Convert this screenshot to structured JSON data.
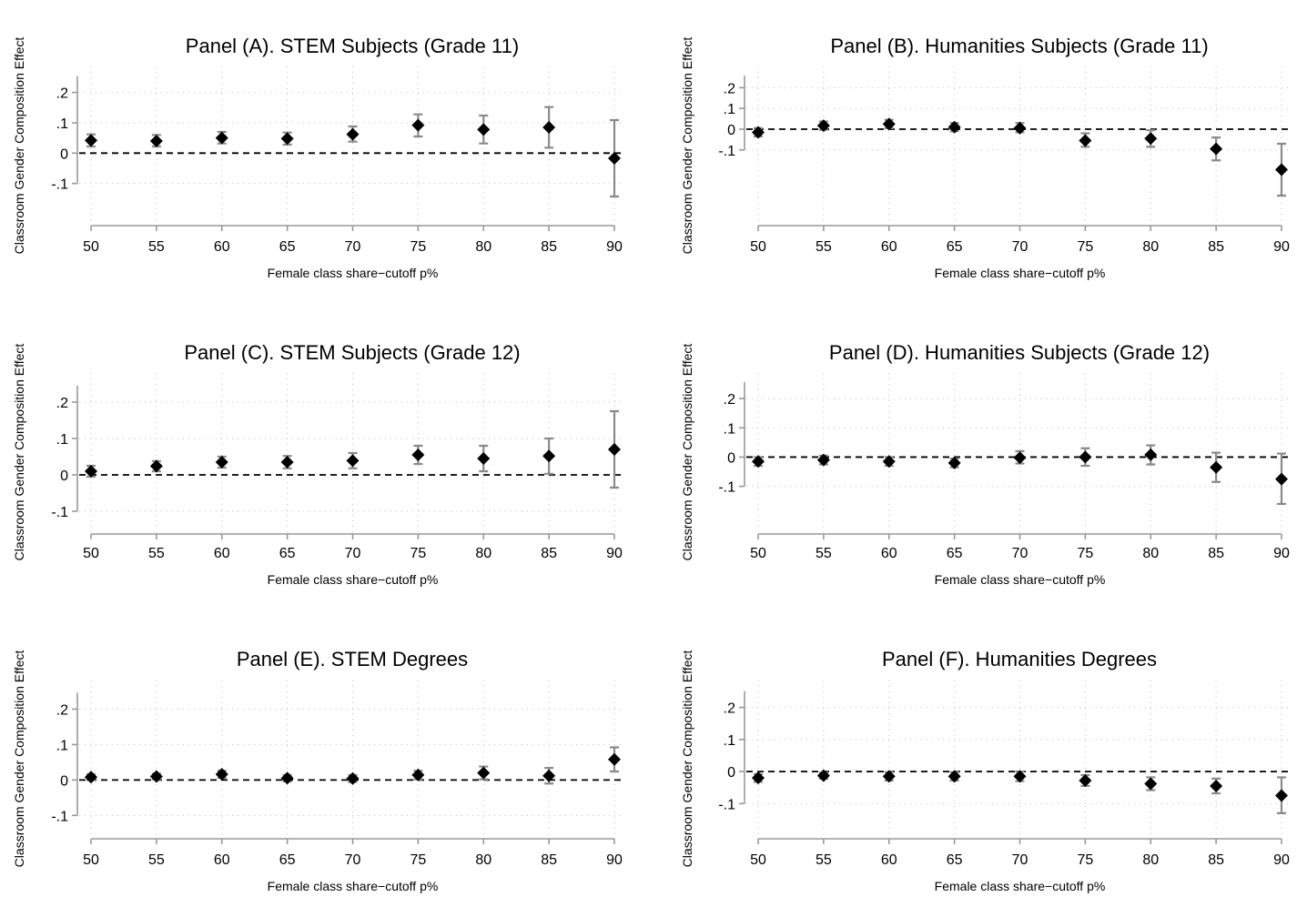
{
  "chart_data": [
    {
      "type": "scatter",
      "title": "Panel (A). STEM Subjects (Grade 11)",
      "xlabel": "Female class share−cutoff p%",
      "ylabel": "Classroom Gender Composition Effect",
      "x": [
        50,
        55,
        60,
        65,
        70,
        75,
        80,
        85,
        90
      ],
      "xticks": [
        "50",
        "55",
        "60",
        "65",
        "70",
        "75",
        "80",
        "85",
        "90"
      ],
      "ylim": [
        -0.14,
        0.25
      ],
      "yticks": [
        {
          "v": -0.1,
          "label": "-.1"
        },
        {
          "v": 0,
          "label": "0"
        },
        {
          "v": 0.1,
          "label": ".1"
        },
        {
          "v": 0.2,
          "label": ".2"
        }
      ],
      "estimate": [
        0.042,
        0.04,
        0.05,
        0.048,
        0.062,
        0.092,
        0.078,
        0.085,
        -0.017
      ],
      "ci_low": [
        0.022,
        0.022,
        0.032,
        0.028,
        0.038,
        0.055,
        0.032,
        0.018,
        -0.143
      ],
      "ci_high": [
        0.062,
        0.06,
        0.07,
        0.068,
        0.088,
        0.128,
        0.124,
        0.152,
        0.109
      ],
      "reference_line": 0,
      "grid": true
    },
    {
      "type": "scatter",
      "title": "Panel (B). Humanities Subjects (Grade 11)",
      "xlabel": "Female class share−cutoff p%",
      "ylabel": "Classroom Gender Composition Effect",
      "x": [
        50,
        55,
        60,
        65,
        70,
        75,
        80,
        85,
        90
      ],
      "xticks": [
        "50",
        "55",
        "60",
        "65",
        "70",
        "75",
        "80",
        "85",
        "90"
      ],
      "ylim": [
        -0.32,
        0.25
      ],
      "yticks": [
        {
          "v": -0.1,
          "label": "-.1"
        },
        {
          "v": 0,
          "label": "0"
        },
        {
          "v": 0.1,
          "label": ".1"
        },
        {
          "v": 0.2,
          "label": ".2"
        }
      ],
      "estimate": [
        -0.015,
        0.017,
        0.025,
        0.01,
        0.005,
        -0.055,
        -0.045,
        -0.095,
        -0.195
      ],
      "ci_low": [
        -0.035,
        -0.003,
        0.005,
        -0.01,
        -0.015,
        -0.085,
        -0.085,
        -0.15,
        -0.32
      ],
      "ci_high": [
        0.005,
        0.037,
        0.045,
        0.03,
        0.03,
        -0.02,
        -0.005,
        -0.04,
        -0.07
      ],
      "reference_line": 0,
      "grid": true
    },
    {
      "type": "scatter",
      "title": "Panel (C). STEM Subjects (Grade 12)",
      "xlabel": "Female class share−cutoff p%",
      "ylabel": "Classroom Gender Composition Effect",
      "x": [
        50,
        55,
        60,
        65,
        70,
        75,
        80,
        85,
        90
      ],
      "xticks": [
        "50",
        "55",
        "60",
        "65",
        "70",
        "75",
        "80",
        "85",
        "90"
      ],
      "ylim": [
        -0.12,
        0.25
      ],
      "yticks": [
        {
          "v": -0.1,
          "label": "-.1"
        },
        {
          "v": 0,
          "label": "0"
        },
        {
          "v": 0.1,
          "label": ".1"
        },
        {
          "v": 0.2,
          "label": ".2"
        }
      ],
      "estimate": [
        0.01,
        0.024,
        0.035,
        0.035,
        0.039,
        0.055,
        0.045,
        0.052,
        0.07
      ],
      "ci_low": [
        -0.005,
        0.01,
        0.02,
        0.018,
        0.018,
        0.03,
        0.01,
        0.003,
        -0.035
      ],
      "ci_high": [
        0.025,
        0.038,
        0.05,
        0.052,
        0.06,
        0.08,
        0.08,
        0.1,
        0.175
      ],
      "reference_line": 0,
      "grid": true
    },
    {
      "type": "scatter",
      "title": "Panel (D). Humanities Subjects (Grade 12)",
      "xlabel": "Female class share−cutoff p%",
      "ylabel": "Classroom Gender Composition Effect",
      "x": [
        50,
        55,
        60,
        65,
        70,
        75,
        80,
        85,
        90
      ],
      "xticks": [
        "50",
        "55",
        "60",
        "65",
        "70",
        "75",
        "80",
        "85",
        "90"
      ],
      "ylim": [
        -0.21,
        0.25
      ],
      "yticks": [
        {
          "v": -0.1,
          "label": "-.1"
        },
        {
          "v": 0,
          "label": "0"
        },
        {
          "v": 0.1,
          "label": ".1"
        },
        {
          "v": 0.2,
          "label": ".2"
        }
      ],
      "estimate": [
        -0.015,
        -0.01,
        -0.015,
        -0.02,
        -0.002,
        0.0,
        0.008,
        -0.035,
        -0.075
      ],
      "ci_low": [
        -0.03,
        -0.025,
        -0.03,
        -0.035,
        -0.022,
        -0.03,
        -0.025,
        -0.085,
        -0.16
      ],
      "ci_high": [
        0.0,
        0.005,
        0.0,
        -0.005,
        0.02,
        0.03,
        0.04,
        0.015,
        0.012
      ],
      "reference_line": 0,
      "grid": true
    },
    {
      "type": "scatter",
      "title": "Panel (E). STEM Degrees",
      "xlabel": "Female class share−cutoff p%",
      "ylabel": "Classroom Gender Composition Effect",
      "x": [
        50,
        55,
        60,
        65,
        70,
        75,
        80,
        85,
        90
      ],
      "xticks": [
        "50",
        "55",
        "60",
        "65",
        "70",
        "75",
        "80",
        "85",
        "90"
      ],
      "ylim": [
        -0.13,
        0.25
      ],
      "yticks": [
        {
          "v": -0.1,
          "label": "-.1"
        },
        {
          "v": 0,
          "label": "0"
        },
        {
          "v": 0.1,
          "label": ".1"
        },
        {
          "v": 0.2,
          "label": ".2"
        }
      ],
      "estimate": [
        0.008,
        0.01,
        0.016,
        0.005,
        0.004,
        0.014,
        0.02,
        0.012,
        0.058
      ],
      "ci_low": [
        0.0,
        0.002,
        0.006,
        -0.004,
        -0.006,
        0.002,
        0.002,
        -0.01,
        0.024
      ],
      "ci_high": [
        0.016,
        0.018,
        0.026,
        0.014,
        0.014,
        0.026,
        0.038,
        0.034,
        0.092
      ],
      "reference_line": 0,
      "grid": true
    },
    {
      "type": "scatter",
      "title": "Panel (F). Humanities Degrees",
      "xlabel": "Female class share−cutoff p%",
      "ylabel": "Classroom Gender Composition Effect",
      "x": [
        50,
        55,
        60,
        65,
        70,
        75,
        80,
        85,
        90
      ],
      "xticks": [
        "50",
        "55",
        "60",
        "65",
        "70",
        "75",
        "80",
        "85",
        "90"
      ],
      "ylim": [
        -0.17,
        0.25
      ],
      "yticks": [
        {
          "v": -0.1,
          "label": "-.1"
        },
        {
          "v": 0,
          "label": "0"
        },
        {
          "v": 0.1,
          "label": ".1"
        },
        {
          "v": 0.2,
          "label": ".2"
        }
      ],
      "estimate": [
        -0.02,
        -0.013,
        -0.015,
        -0.015,
        -0.015,
        -0.028,
        -0.038,
        -0.045,
        -0.075
      ],
      "ci_low": [
        -0.032,
        -0.022,
        -0.028,
        -0.028,
        -0.03,
        -0.045,
        -0.058,
        -0.068,
        -0.13
      ],
      "ci_high": [
        -0.008,
        -0.004,
        -0.002,
        -0.002,
        0.0,
        -0.011,
        -0.018,
        -0.022,
        -0.018
      ],
      "reference_line": 0,
      "grid": true
    }
  ]
}
